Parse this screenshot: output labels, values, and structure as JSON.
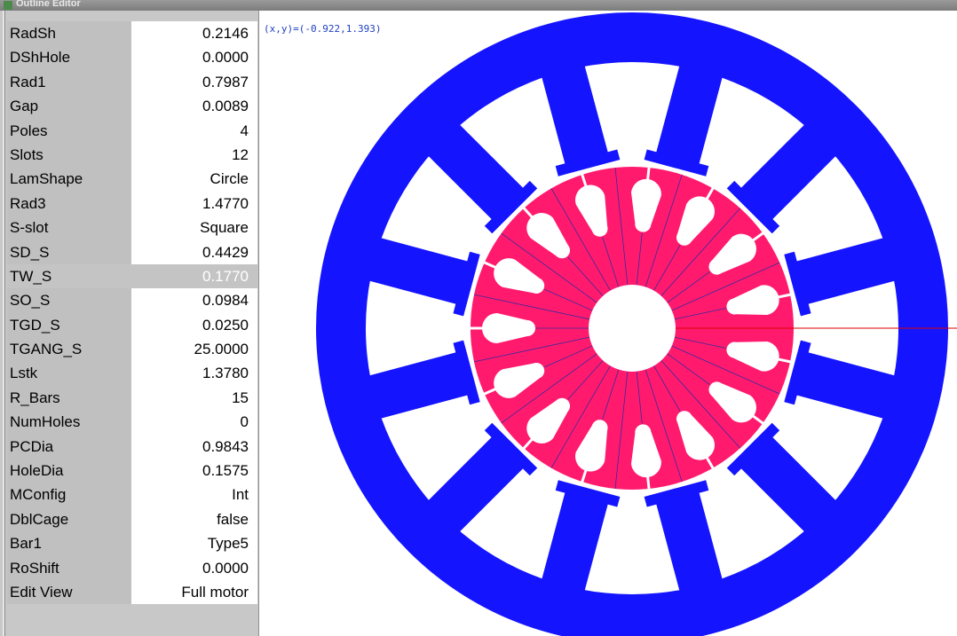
{
  "window": {
    "title": "Outline Editor"
  },
  "coordinates": "(x,y)=(-0.922,1.393)",
  "table": {
    "rows": [
      [
        "RadSh",
        "0.2146"
      ],
      [
        "DShHole",
        "0.0000"
      ],
      [
        "Rad1",
        "0.7987"
      ],
      [
        "Gap",
        "0.0089"
      ],
      [
        "Poles",
        "4"
      ],
      [
        "Slots",
        "12"
      ],
      [
        "LamShape",
        "Circle"
      ],
      [
        "Rad3",
        "1.4770"
      ],
      [
        "S-slot",
        "Square"
      ],
      [
        "SD_S",
        "0.4429"
      ],
      [
        "TW_S",
        "0.1770"
      ],
      [
        "SO_S",
        "0.0984"
      ],
      [
        "TGD_S",
        "0.0250"
      ],
      [
        "TGANG_S",
        "25.0000"
      ],
      [
        "Lstk",
        "1.3780"
      ],
      [
        "R_Bars",
        "15"
      ],
      [
        "NumHoles",
        "0"
      ],
      [
        "PCDia",
        "0.9843"
      ],
      [
        "HoleDia",
        "0.1575"
      ],
      [
        "MConfig",
        "Int"
      ],
      [
        "DblCage",
        "false"
      ],
      [
        "Bar1",
        "Type5"
      ],
      [
        "RoShift",
        "0.0000"
      ],
      [
        "Edit View",
        "Full motor"
      ]
    ]
  }
}
